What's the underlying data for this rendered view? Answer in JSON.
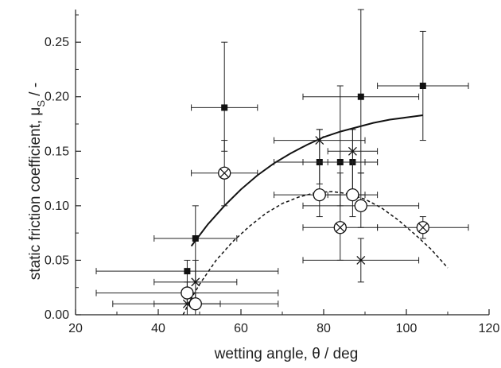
{
  "chart_data": {
    "type": "scatter",
    "xlabel": "wetting angle, θ / deg",
    "ylabel_main": "static friction coefficient, μ",
    "ylabel_sub": "S",
    "ylabel_suffix": " / -",
    "xlim": [
      20,
      120
    ],
    "ylim": [
      0,
      0.28
    ],
    "x_ticks": [
      20,
      40,
      60,
      80,
      100,
      120
    ],
    "x_tick_labels": [
      "20",
      "40",
      "60",
      "80",
      "100",
      "120"
    ],
    "y_ticks": [
      0,
      0.05,
      0.1,
      0.15,
      0.2,
      0.25
    ],
    "y_tick_labels": [
      "0.00",
      "0.05",
      "0.10",
      "0.15",
      "0.20",
      "0.25"
    ],
    "grid": false,
    "series": [
      {
        "marker": "filled-square",
        "points": [
          {
            "x": 47,
            "y": 0.04,
            "xerr": 22,
            "yerr": [
              0.03,
              0.01
            ]
          },
          {
            "x": 49,
            "y": 0.07,
            "xerr": 10,
            "yerr": [
              0.04,
              0.03
            ]
          },
          {
            "x": 56,
            "y": 0.19,
            "xerr": 8,
            "yerr": [
              0.04,
              0.06
            ]
          },
          {
            "x": 79,
            "y": 0.14,
            "xerr": 11,
            "yerr": [
              0.02,
              0.03
            ]
          },
          {
            "x": 84,
            "y": 0.14,
            "xerr": 9,
            "yerr": [
              0.04,
              0.07
            ]
          },
          {
            "x": 87,
            "y": 0.14,
            "xerr": 6,
            "yerr": [
              0.03,
              0.03
            ]
          },
          {
            "x": 89,
            "y": 0.2,
            "xerr": 14,
            "yerr": [
              0.07,
              0.08
            ]
          },
          {
            "x": 104,
            "y": 0.21,
            "xerr": 11,
            "yerr": [
              0.05,
              0.05
            ]
          }
        ]
      },
      {
        "marker": "x",
        "points": [
          {
            "x": 47,
            "y": 0.01,
            "xerr": 8,
            "yerr": [
              0.01,
              0.01
            ]
          },
          {
            "x": 49,
            "y": 0.03,
            "xerr": 10,
            "yerr": [
              0.02,
              0.02
            ]
          },
          {
            "x": 79,
            "y": 0.16,
            "xerr": 11,
            "yerr": [
              0.02,
              0.01
            ]
          },
          {
            "x": 87,
            "y": 0.15,
            "xerr": 6,
            "yerr": [
              0.04,
              0.02
            ]
          },
          {
            "x": 89,
            "y": 0.05,
            "xerr": 14,
            "yerr": [
              0.02,
              0.02
            ]
          }
        ]
      },
      {
        "marker": "open-circle",
        "points": [
          {
            "x": 47,
            "y": 0.02,
            "xerr": 22,
            "yerr": [
              0.01,
              0.01
            ]
          },
          {
            "x": 49,
            "y": 0.01,
            "xerr": 20,
            "yerr": [
              0.01,
              0.01
            ]
          },
          {
            "x": 79,
            "y": 0.11,
            "xerr": 11,
            "yerr": [
              0.02,
              0.03
            ]
          },
          {
            "x": 87,
            "y": 0.11,
            "xerr": 6,
            "yerr": [
              0.02,
              0.03
            ]
          },
          {
            "x": 89,
            "y": 0.1,
            "xerr": 14,
            "yerr": [
              0.02,
              0.03
            ]
          }
        ]
      },
      {
        "marker": "circle-x",
        "points": [
          {
            "x": 56,
            "y": 0.13,
            "xerr": 8,
            "yerr": [
              0.03,
              0.03
            ]
          },
          {
            "x": 84,
            "y": 0.08,
            "xerr": 9,
            "yerr": [
              0.03,
              0.05
            ]
          },
          {
            "x": 104,
            "y": 0.08,
            "xerr": 11,
            "yerr": [
              0.01,
              0.01
            ]
          }
        ]
      }
    ],
    "fit_curves": [
      {
        "style": "solid",
        "x": [
          48,
          52,
          56,
          60,
          64,
          68,
          72,
          76,
          80,
          84,
          88,
          92,
          96,
          100,
          104
        ],
        "y": [
          0.063,
          0.083,
          0.1,
          0.115,
          0.128,
          0.139,
          0.148,
          0.156,
          0.163,
          0.168,
          0.172,
          0.176,
          0.179,
          0.181,
          0.183
        ]
      },
      {
        "style": "dashed",
        "x": [
          46,
          48,
          50,
          54,
          58,
          62,
          66,
          70,
          74,
          78,
          82,
          86,
          90,
          94,
          98,
          102,
          106,
          110
        ],
        "y": [
          0.0,
          0.015,
          0.028,
          0.05,
          0.067,
          0.081,
          0.093,
          0.102,
          0.108,
          0.112,
          0.113,
          0.111,
          0.106,
          0.098,
          0.087,
          0.074,
          0.06,
          0.043
        ]
      }
    ]
  }
}
